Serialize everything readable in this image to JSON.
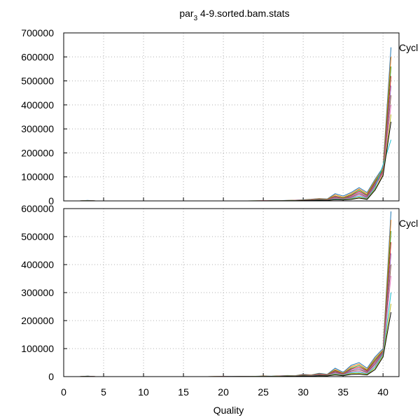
{
  "chart_data": [
    {
      "type": "line",
      "title": "par_3 4-9.sorted.bam.stats",
      "title_parts": {
        "base": "par",
        "sub": "3",
        "rest": " 4-9.sorted.bam.stats"
      },
      "legend_label": "Cycl",
      "legend_placement": "right, clipped at top",
      "xlabel": "",
      "ylabel": "",
      "xlim": [
        0,
        42
      ],
      "ylim": [
        0,
        700000
      ],
      "grid": true,
      "yticks": [
        "700000",
        "600000",
        "500000",
        "400000",
        "300000",
        "200000",
        "100000",
        "0"
      ],
      "x": [
        2,
        3,
        4,
        23,
        24,
        25,
        26,
        27,
        28,
        29,
        30,
        31,
        32,
        33,
        34,
        35,
        36,
        37,
        38,
        39,
        40,
        41
      ],
      "series": [
        {
          "color": "#1f77b4",
          "values": [
            0,
            2000,
            0,
            0,
            300,
            600,
            800,
            1200,
            2000,
            3000,
            5000,
            7000,
            10000,
            8000,
            30000,
            20000,
            35000,
            55000,
            35000,
            90000,
            140000,
            640000
          ]
        },
        {
          "color": "#ff7f0e",
          "values": [
            0,
            1500,
            0,
            0,
            200,
            500,
            700,
            1000,
            1800,
            2500,
            4500,
            6000,
            9000,
            7000,
            25000,
            15000,
            30000,
            50000,
            30000,
            85000,
            135000,
            600000
          ]
        },
        {
          "color": "#2ca02c",
          "values": [
            0,
            1200,
            0,
            0,
            150,
            400,
            600,
            900,
            1500,
            2200,
            4000,
            5500,
            8000,
            6000,
            20000,
            12000,
            25000,
            45000,
            25000,
            80000,
            130000,
            560000
          ]
        },
        {
          "color": "#d62728",
          "values": [
            0,
            1000,
            0,
            0,
            100,
            300,
            500,
            800,
            1300,
            2000,
            3500,
            5000,
            7000,
            5000,
            18000,
            10000,
            22000,
            40000,
            22000,
            75000,
            125000,
            520000
          ]
        },
        {
          "color": "#9467bd",
          "values": [
            0,
            900,
            0,
            0,
            100,
            250,
            400,
            700,
            1100,
            1800,
            3000,
            4500,
            6000,
            4500,
            15000,
            9000,
            18000,
            35000,
            18000,
            70000,
            120000,
            480000
          ]
        },
        {
          "color": "#8c564b",
          "values": [
            0,
            800,
            0,
            0,
            80,
            200,
            350,
            600,
            1000,
            1600,
            2800,
            4000,
            5500,
            4000,
            12000,
            8000,
            15000,
            30000,
            15000,
            65000,
            118000,
            440000
          ]
        },
        {
          "color": "#e377c2",
          "values": [
            0,
            700,
            0,
            0,
            60,
            150,
            300,
            500,
            900,
            1400,
            2500,
            3500,
            5000,
            3500,
            10000,
            7000,
            12000,
            25000,
            12000,
            60000,
            115000,
            400000
          ]
        },
        {
          "color": "#17becf",
          "values": [
            0,
            600,
            0,
            0,
            50,
            120,
            250,
            400,
            800,
            1200,
            2000,
            3000,
            4000,
            3000,
            8000,
            6000,
            10000,
            20000,
            10000,
            55000,
            150000,
            255000
          ]
        },
        {
          "color": "#bcbd22",
          "values": [
            0,
            500,
            0,
            0,
            40,
            100,
            200,
            300,
            700,
            1000,
            1800,
            2500,
            3500,
            2500,
            6000,
            5000,
            8000,
            15000,
            8000,
            50000,
            110000,
            360000
          ]
        },
        {
          "color": "#000000",
          "values": [
            0,
            400,
            0,
            0,
            30,
            80,
            150,
            250,
            600,
            900,
            1500,
            2000,
            3000,
            2000,
            5000,
            4000,
            6000,
            12000,
            6000,
            45000,
            105000,
            330000
          ]
        }
      ]
    },
    {
      "type": "line",
      "title": "",
      "legend_label": "Cycl",
      "legend_placement": "right, clipped at top",
      "xlabel": "Quality",
      "ylabel": "",
      "xlim": [
        0,
        42
      ],
      "ylim": [
        0,
        600000
      ],
      "grid": true,
      "xticks": [
        "0",
        "5",
        "10",
        "15",
        "20",
        "25",
        "30",
        "35",
        "40"
      ],
      "yticks": [
        "600000",
        "500000",
        "400000",
        "300000",
        "200000",
        "100000",
        "0"
      ],
      "x": [
        2,
        3,
        4,
        18,
        19,
        20,
        21,
        22,
        23,
        24,
        25,
        26,
        27,
        28,
        29,
        30,
        31,
        32,
        33,
        34,
        35,
        36,
        37,
        38,
        39,
        40,
        41
      ],
      "series": [
        {
          "color": "#1f77b4",
          "values": [
            0,
            2000,
            0,
            0,
            300,
            400,
            500,
            700,
            900,
            1200,
            2000,
            1500,
            2500,
            4000,
            3500,
            8000,
            6000,
            12000,
            8000,
            30000,
            15000,
            40000,
            50000,
            30000,
            70000,
            100000,
            590000
          ]
        },
        {
          "color": "#ff7f0e",
          "values": [
            0,
            1500,
            0,
            0,
            250,
            350,
            450,
            600,
            800,
            1100,
            1800,
            1300,
            2200,
            3500,
            3000,
            7000,
            5500,
            10000,
            7000,
            25000,
            12000,
            35000,
            45000,
            25000,
            65000,
            95000,
            560000
          ]
        },
        {
          "color": "#2ca02c",
          "values": [
            0,
            1200,
            0,
            0,
            200,
            300,
            400,
            500,
            700,
            1000,
            1600,
            1200,
            2000,
            3000,
            2800,
            6000,
            5000,
            9000,
            6000,
            22000,
            10000,
            30000,
            40000,
            22000,
            60000,
            92000,
            520000
          ]
        },
        {
          "color": "#d62728",
          "values": [
            0,
            1000,
            0,
            0,
            150,
            250,
            350,
            450,
            600,
            900,
            1400,
            1100,
            1800,
            2800,
            2500,
            5500,
            4500,
            8000,
            5500,
            20000,
            9000,
            27000,
            35000,
            20000,
            55000,
            90000,
            480000
          ]
        },
        {
          "color": "#9467bd",
          "values": [
            0,
            900,
            0,
            0,
            120,
            200,
            300,
            400,
            500,
            800,
            1200,
            1000,
            1600,
            2500,
            2200,
            5000,
            4000,
            7000,
            5000,
            17000,
            8000,
            24000,
            30000,
            17000,
            50000,
            88000,
            440000
          ]
        },
        {
          "color": "#8c564b",
          "values": [
            0,
            800,
            0,
            0,
            100,
            150,
            250,
            350,
            450,
            700,
            1000,
            900,
            1400,
            2200,
            2000,
            4500,
            3500,
            6000,
            4500,
            15000,
            7000,
            20000,
            25000,
            15000,
            45000,
            85000,
            400000
          ]
        },
        {
          "color": "#e377c2",
          "values": [
            0,
            700,
            0,
            0,
            80,
            120,
            200,
            300,
            400,
            600,
            900,
            800,
            1200,
            2000,
            1800,
            4000,
            3000,
            5000,
            4000,
            12000,
            6000,
            17000,
            20000,
            12000,
            40000,
            82000,
            360000
          ]
        },
        {
          "color": "#17becf",
          "values": [
            0,
            600,
            0,
            0,
            60,
            100,
            150,
            250,
            350,
            500,
            800,
            700,
            1000,
            1800,
            1500,
            3500,
            2500,
            4000,
            3500,
            10000,
            5000,
            14000,
            16000,
            10000,
            35000,
            80000,
            300000
          ]
        },
        {
          "color": "#bcbd22",
          "values": [
            0,
            500,
            0,
            0,
            50,
            80,
            120,
            200,
            300,
            400,
            700,
            600,
            900,
            1500,
            1200,
            3000,
            2000,
            3500,
            3000,
            8000,
            4000,
            11000,
            12000,
            8000,
            30000,
            75000,
            260000
          ]
        },
        {
          "color": "#000000",
          "values": [
            0,
            400,
            0,
            0,
            40,
            60,
            100,
            150,
            250,
            300,
            600,
            500,
            800,
            1200,
            1000,
            2500,
            1500,
            3000,
            2500,
            6000,
            3000,
            8000,
            9000,
            6000,
            25000,
            70000,
            230000
          ]
        }
      ]
    }
  ]
}
